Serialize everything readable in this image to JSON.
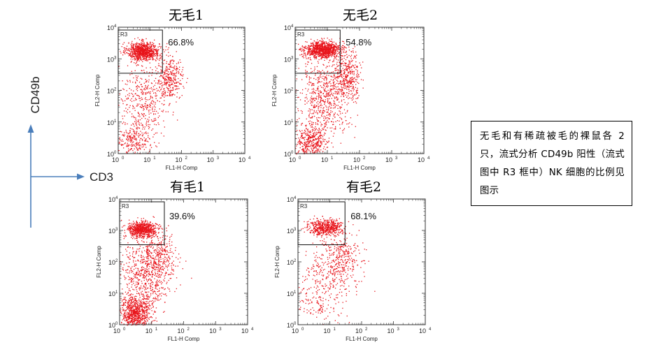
{
  "axis_markers": {
    "vertical_label": "CD49b",
    "horizontal_label": "CD3",
    "color": "#4a7ebb"
  },
  "caption": "无毛和有稀疏被毛的裸鼠各 2 只，流式分析 CD49b 阳性（流式图中 R3 框中）NK 细胞的比例见图示",
  "chart_data": [
    {
      "type": "scatter",
      "title": "无毛1",
      "xlabel": "FL1-H Comp",
      "ylabel": "FL2-H Comp",
      "xscale": "log",
      "yscale": "log",
      "xlim": [
        1,
        10000
      ],
      "ylim": [
        1,
        10000
      ],
      "x_ticks": [
        "10",
        "10",
        "10",
        "10",
        "10"
      ],
      "x_tick_exponents": [
        "0",
        "1",
        "2",
        "3",
        "4"
      ],
      "y_ticks": [
        "10",
        "10",
        "10",
        "10",
        "10"
      ],
      "y_tick_exponents": [
        "0",
        "1",
        "2",
        "3",
        "4"
      ],
      "gate": {
        "name": "R3",
        "x_range": [
          1,
          25
        ],
        "y_range": [
          350,
          10000
        ],
        "percent": "66.8%"
      },
      "point_color": "#e8141b",
      "populations": [
        {
          "x_center": 6,
          "y_center": 1800,
          "x_spread_decades": 0.25,
          "y_spread_decades": 0.14,
          "count": 900
        },
        {
          "x_center": 3,
          "y_center": 2.5,
          "x_spread_decades": 0.25,
          "y_spread_decades": 0.25,
          "count": 220
        },
        {
          "x_center": 40,
          "y_center": 250,
          "x_spread_decades": 0.22,
          "y_spread_decades": 0.35,
          "count": 330
        },
        {
          "x_center": 6,
          "y_center": 40,
          "x_spread_decades": 0.4,
          "y_spread_decades": 0.65,
          "count": 420
        }
      ]
    },
    {
      "type": "scatter",
      "title": "无毛2",
      "xlabel": "FL1-H Comp",
      "ylabel": "FL2-H Comp",
      "xscale": "log",
      "yscale": "log",
      "xlim": [
        1,
        10000
      ],
      "ylim": [
        1,
        10000
      ],
      "x_ticks": [
        "10",
        "10",
        "10",
        "10",
        "10"
      ],
      "x_tick_exponents": [
        "0",
        "1",
        "2",
        "3",
        "4"
      ],
      "y_ticks": [
        "10",
        "10",
        "10",
        "10",
        "10"
      ],
      "y_tick_exponents": [
        "0",
        "1",
        "2",
        "3",
        "4"
      ],
      "gate": {
        "name": "R3",
        "x_range": [
          1,
          25
        ],
        "y_range": [
          350,
          10000
        ],
        "percent": "54.8%"
      },
      "point_color": "#e8141b",
      "populations": [
        {
          "x_center": 7,
          "y_center": 2000,
          "x_spread_decades": 0.28,
          "y_spread_decades": 0.13,
          "count": 1000
        },
        {
          "x_center": 3,
          "y_center": 2.5,
          "x_spread_decades": 0.22,
          "y_spread_decades": 0.25,
          "count": 380
        },
        {
          "x_center": 40,
          "y_center": 300,
          "x_spread_decades": 0.22,
          "y_spread_decades": 0.35,
          "count": 380
        },
        {
          "x_center": 8,
          "y_center": 60,
          "x_spread_decades": 0.4,
          "y_spread_decades": 0.6,
          "count": 650
        }
      ]
    },
    {
      "type": "scatter",
      "title": "有毛1",
      "xlabel": "FL1-H Comp",
      "ylabel": "FL2-H Comp",
      "xscale": "log",
      "yscale": "log",
      "xlim": [
        1,
        10000
      ],
      "ylim": [
        1,
        10000
      ],
      "x_ticks": [
        "10",
        "10",
        "10",
        "10",
        "10"
      ],
      "x_tick_exponents": [
        "0",
        "1",
        "2",
        "3",
        "4"
      ],
      "y_ticks": [
        "10",
        "10",
        "10",
        "10",
        "10"
      ],
      "y_tick_exponents": [
        "0",
        "1",
        "2",
        "3",
        "4"
      ],
      "gate": {
        "name": "R3",
        "x_range": [
          1,
          25
        ],
        "y_range": [
          350,
          10000
        ],
        "percent": "39.6%"
      },
      "point_color": "#e8141b",
      "populations": [
        {
          "x_center": 5,
          "y_center": 1100,
          "x_spread_decades": 0.22,
          "y_spread_decades": 0.12,
          "count": 750
        },
        {
          "x_center": 3,
          "y_center": 2.2,
          "x_spread_decades": 0.22,
          "y_spread_decades": 0.28,
          "count": 750
        },
        {
          "x_center": 15,
          "y_center": 150,
          "x_spread_decades": 0.3,
          "y_spread_decades": 0.4,
          "count": 300
        },
        {
          "x_center": 6,
          "y_center": 30,
          "x_spread_decades": 0.4,
          "y_spread_decades": 0.6,
          "count": 650
        }
      ]
    },
    {
      "type": "scatter",
      "title": "有毛2",
      "xlabel": "FL1-H Comp",
      "ylabel": "FL2-H Comp",
      "xscale": "log",
      "yscale": "log",
      "xlim": [
        1,
        10000
      ],
      "ylim": [
        1,
        10000
      ],
      "x_ticks": [
        "10",
        "10",
        "10",
        "10",
        "10"
      ],
      "x_tick_exponents": [
        "0",
        "1",
        "2",
        "3",
        "4"
      ],
      "y_ticks": [
        "10",
        "10",
        "10",
        "10",
        "10"
      ],
      "y_tick_exponents": [
        "0",
        "1",
        "2",
        "3",
        "4"
      ],
      "gate": {
        "name": "R3",
        "x_range": [
          1,
          30
        ],
        "y_range": [
          350,
          10000
        ],
        "percent": "68.1%"
      },
      "point_color": "#e8141b",
      "populations": [
        {
          "x_center": 7,
          "y_center": 1300,
          "x_spread_decades": 0.28,
          "y_spread_decades": 0.12,
          "count": 550
        },
        {
          "x_center": 4,
          "y_center": 5,
          "x_spread_decades": 0.3,
          "y_spread_decades": 0.35,
          "count": 120
        },
        {
          "x_center": 25,
          "y_center": 150,
          "x_spread_decades": 0.3,
          "y_spread_decades": 0.35,
          "count": 200
        },
        {
          "x_center": 10,
          "y_center": 40,
          "x_spread_decades": 0.45,
          "y_spread_decades": 0.55,
          "count": 300
        }
      ]
    }
  ]
}
